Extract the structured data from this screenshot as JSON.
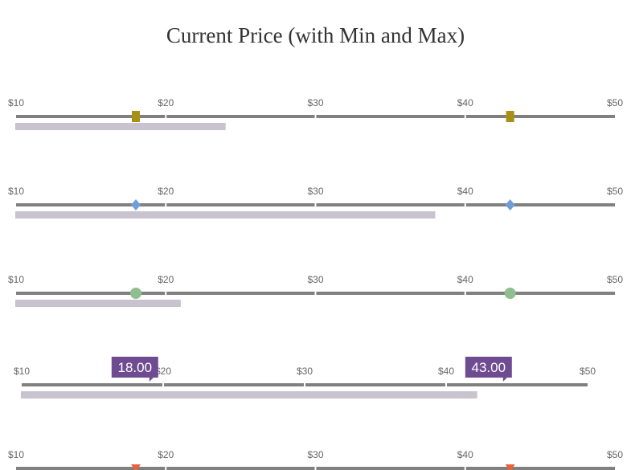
{
  "colors": {
    "track": "#808080",
    "range_bar": "#c8c3ce",
    "tick_label": "#666666",
    "badge": "#6f4c91",
    "badge_text": "#ffffff"
  },
  "chart_data": {
    "type": "bullet-range",
    "title": "Current Price (with Min and Max)",
    "axis": {
      "min": 10,
      "max": 50,
      "ticks": [
        10,
        20,
        30,
        40,
        50
      ],
      "tick_labels": [
        "$10",
        "$20",
        "$30",
        "$40",
        "$50"
      ]
    },
    "gauges": [
      {
        "min_marker": 18,
        "max_marker": 43,
        "current": 24,
        "marker_shape": "square",
        "marker_color": "#a89016",
        "show_value_labels": false
      },
      {
        "min_marker": 18,
        "max_marker": 43,
        "current": 38,
        "marker_shape": "diamond",
        "marker_color": "#6f9fd8",
        "show_value_labels": false
      },
      {
        "min_marker": 18,
        "max_marker": 43,
        "current": 21,
        "marker_shape": "circle",
        "marker_color": "#8fbf8f",
        "show_value_labels": false
      },
      {
        "min_marker": 18,
        "max_marker": 43,
        "current": 42.2,
        "marker_shape": "none",
        "marker_color": "#6f4c91",
        "show_value_labels": true,
        "value_labels": [
          "18.00",
          "43.00"
        ]
      },
      {
        "min_marker": 18,
        "max_marker": 43,
        "current": null,
        "marker_shape": "triangle-down",
        "marker_color": "#e8623c",
        "show_value_labels": false
      }
    ]
  }
}
